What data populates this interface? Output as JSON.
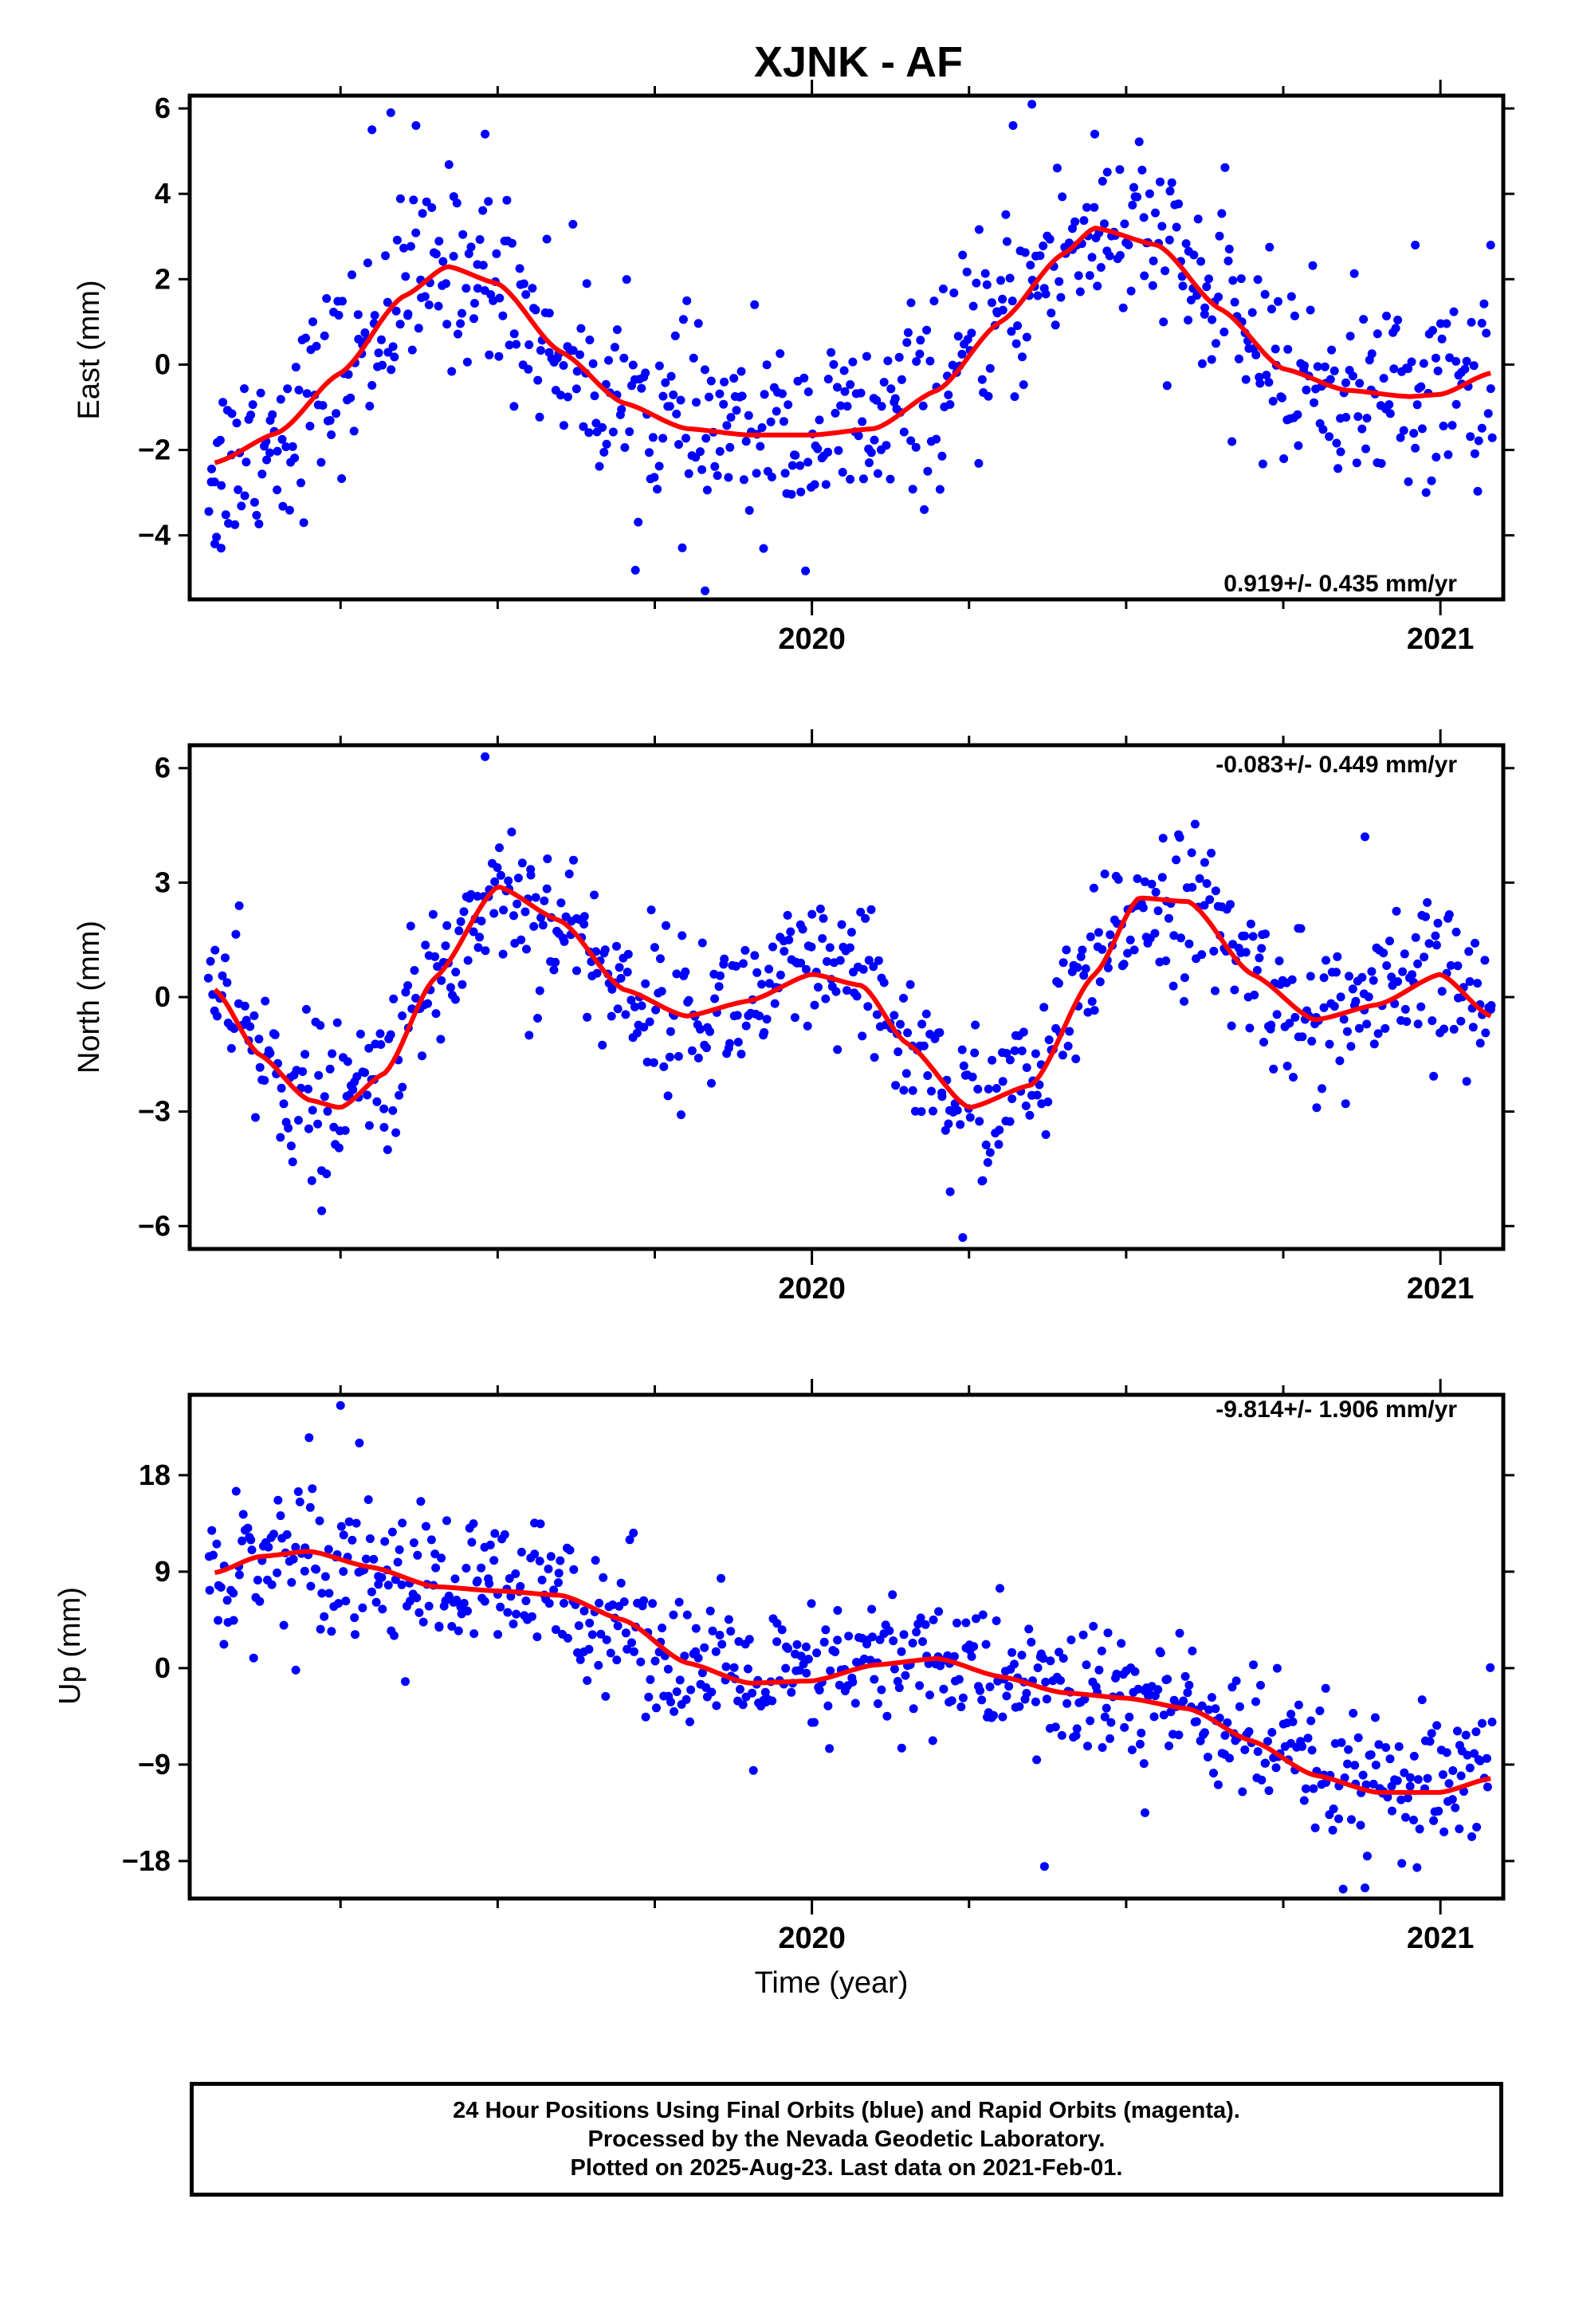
{
  "title": "XJNK - AF",
  "xlabel": "Time (year)",
  "footer": {
    "line1": "24 Hour Positions Using Final Orbits (blue) and Rapid Orbits (magenta).",
    "line2": "Processed by the Nevada Geodetic Laboratory.",
    "line3": "Plotted on 2025-Aug-23. Last data on 2021-Feb-01."
  },
  "colors": {
    "points": "#0000ff",
    "fit": "#ff0000",
    "axis": "#000000"
  },
  "chart_data": [
    {
      "type": "scatter",
      "component": "east",
      "ylabel": "East (mm)",
      "rate_label": "0.919+/- 0.435 mm/yr",
      "xlim": [
        2019.01,
        2021.1
      ],
      "ylim": [
        -5.5,
        6.3
      ],
      "yticks": [
        -4,
        -2,
        0,
        2,
        4,
        6
      ],
      "xtick_labels": [
        {
          "x": 2020,
          "label": "2020"
        },
        {
          "x": 2021,
          "label": "2021"
        }
      ],
      "x_minor_ticks": [
        2019.25,
        2019.5,
        2019.75,
        2020.25,
        2020.5,
        2020.75
      ],
      "fit": {
        "x": [
          2019.05,
          2019.15,
          2019.25,
          2019.35,
          2019.42,
          2019.5,
          2019.6,
          2019.7,
          2019.8,
          2019.9,
          2020.0,
          2020.1,
          2020.2,
          2020.3,
          2020.4,
          2020.45,
          2020.55,
          2020.65,
          2020.75,
          2020.85,
          2020.95,
          2021.0,
          2021.08
        ],
        "y": [
          -2.3,
          -1.6,
          -0.2,
          1.6,
          2.3,
          1.9,
          0.3,
          -0.9,
          -1.5,
          -1.65,
          -1.65,
          -1.5,
          -0.6,
          1.0,
          2.6,
          3.2,
          2.8,
          1.3,
          -0.1,
          -0.6,
          -0.75,
          -0.7,
          -0.2
        ]
      },
      "points": {
        "count": 700,
        "noise": 1.1,
        "outliers": [
          [
            2019.3,
            5.5
          ],
          [
            2019.33,
            5.9
          ],
          [
            2019.37,
            5.6
          ],
          [
            2019.48,
            5.4
          ],
          [
            2020.32,
            5.6
          ],
          [
            2020.35,
            6.1
          ],
          [
            2020.45,
            5.4
          ],
          [
            2019.05,
            -4.2
          ],
          [
            2019.06,
            -4.3
          ],
          [
            2019.83,
            -5.3
          ],
          [
            2020.96,
            2.8
          ],
          [
            2021.08,
            2.8
          ]
        ]
      }
    },
    {
      "type": "scatter",
      "component": "north",
      "ylabel": "North (mm)",
      "rate_label": "-0.083+/- 0.449 mm/yr",
      "xlim": [
        2019.01,
        2021.1
      ],
      "ylim": [
        -6.6,
        6.6
      ],
      "yticks": [
        -6,
        -3,
        0,
        3,
        6
      ],
      "xtick_labels": [
        {
          "x": 2020,
          "label": "2020"
        },
        {
          "x": 2021,
          "label": "2021"
        }
      ],
      "x_minor_ticks": [
        2019.25,
        2019.5,
        2019.75,
        2020.25,
        2020.5,
        2020.75
      ],
      "fit": {
        "x": [
          2019.05,
          2019.12,
          2019.2,
          2019.25,
          2019.32,
          2019.4,
          2019.5,
          2019.6,
          2019.7,
          2019.8,
          2019.9,
          2020.0,
          2020.08,
          2020.15,
          2020.25,
          2020.35,
          2020.45,
          2020.52,
          2020.6,
          2020.7,
          2020.8,
          2020.9,
          2021.0,
          2021.08
        ],
        "y": [
          0.2,
          -1.5,
          -2.7,
          -2.9,
          -2.0,
          0.5,
          2.9,
          2.0,
          0.2,
          -0.5,
          -0.1,
          0.6,
          0.3,
          -1.2,
          -2.9,
          -2.3,
          0.6,
          2.6,
          2.5,
          0.6,
          -0.6,
          -0.2,
          0.6,
          -0.5
        ]
      },
      "points": {
        "count": 700,
        "noise": 1.0,
        "outliers": [
          [
            2019.48,
            6.3
          ],
          [
            2020.88,
            4.2
          ],
          [
            2019.22,
            -5.6
          ],
          [
            2020.24,
            -6.3
          ],
          [
            2020.22,
            -5.1
          ],
          [
            2019.55,
            -1.0
          ]
        ]
      }
    },
    {
      "type": "scatter",
      "component": "up",
      "ylabel": "Up (mm)",
      "rate_label": "-9.814+/- 1.906 mm/yr",
      "xlim": [
        2019.01,
        2021.1
      ],
      "ylim": [
        -21.5,
        25.5
      ],
      "yticks": [
        -18,
        -9,
        0,
        9,
        18
      ],
      "xtick_labels": [
        {
          "x": 2020,
          "label": "2020"
        },
        {
          "x": 2021,
          "label": "2021"
        }
      ],
      "x_minor_ticks": [
        2019.25,
        2019.5,
        2019.75,
        2020.25,
        2020.5,
        2020.75
      ],
      "fit": {
        "x": [
          2019.05,
          2019.12,
          2019.2,
          2019.3,
          2019.4,
          2019.5,
          2019.6,
          2019.7,
          2019.8,
          2019.9,
          2020.0,
          2020.1,
          2020.2,
          2020.3,
          2020.4,
          2020.5,
          2020.6,
          2020.7,
          2020.8,
          2020.9,
          2021.0,
          2021.08
        ],
        "y": [
          8.9,
          10.4,
          10.9,
          9.4,
          7.6,
          7.2,
          6.8,
          4.5,
          0.5,
          -1.4,
          -1.2,
          0.3,
          0.9,
          -0.8,
          -2.3,
          -2.8,
          -3.8,
          -6.8,
          -10.0,
          -11.6,
          -11.6,
          -10.3
        ]
      },
      "points": {
        "count": 700,
        "noise": 3.3,
        "outliers": [
          [
            2019.25,
            24.5
          ],
          [
            2019.28,
            21.0
          ],
          [
            2019.2,
            21.5
          ],
          [
            2020.37,
            -18.5
          ],
          [
            2020.88,
            -20.5
          ],
          [
            2020.53,
            -13.5
          ],
          [
            2021.03,
            -15.0
          ]
        ]
      }
    }
  ]
}
